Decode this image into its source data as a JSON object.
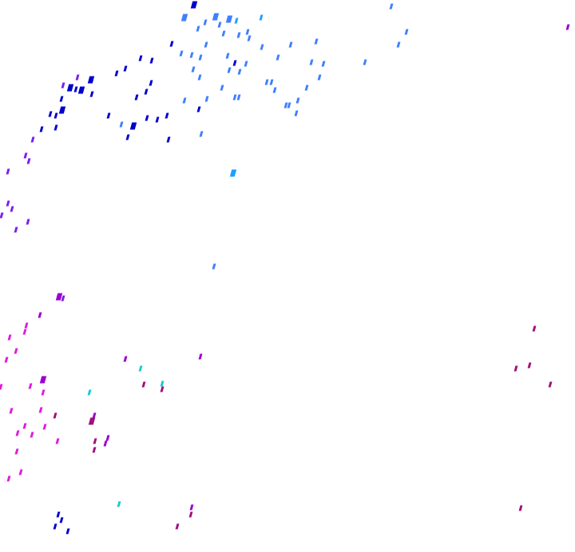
{
  "background": "#ffffff",
  "palette": {
    "dark_blue": "#0000cc",
    "mid_blue": "#1a3fe0",
    "light_blue": "#3f7fff",
    "sky": "#1ea0ff",
    "cyan": "#19c8d8",
    "violet": "#7a1ef0",
    "purple": "#9a00d0",
    "magenta": "#e01ae0",
    "plum": "#a0107a"
  }
}
